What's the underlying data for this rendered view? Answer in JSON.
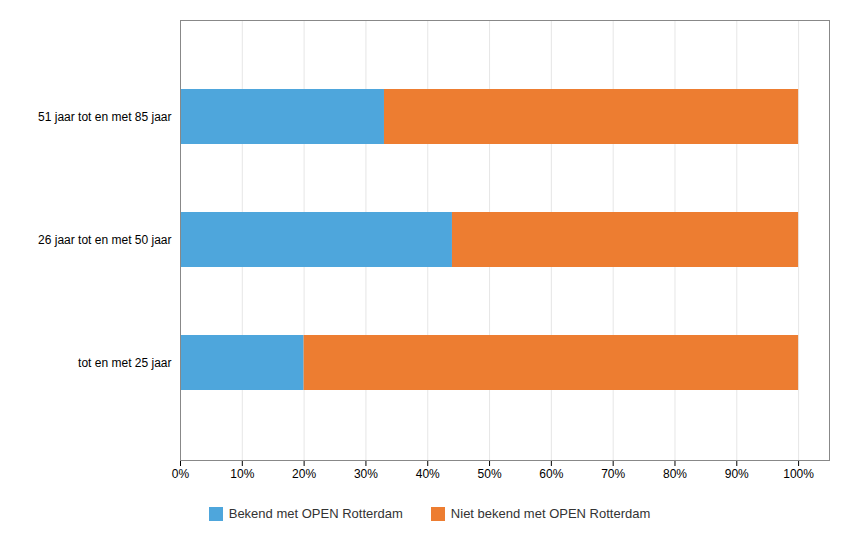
{
  "chart_data": {
    "type": "bar",
    "orientation": "horizontal",
    "stacked": true,
    "categories": [
      "tot en met 25 jaar",
      "26 jaar tot en met 50 jaar",
      "51 jaar tot en met 85 jaar"
    ],
    "series": [
      {
        "name": "Bekend met OPEN Rotterdam",
        "color": "#4EA6DC",
        "values": [
          20,
          44,
          33
        ]
      },
      {
        "name": "Niet bekend met OPEN Rotterdam",
        "color": "#ED7D31",
        "values": [
          80,
          56,
          67
        ]
      }
    ],
    "xlim": [
      0,
      105
    ],
    "xticks": [
      {
        "value": 0,
        "label": "0%"
      },
      {
        "value": 10,
        "label": "10%"
      },
      {
        "value": 20,
        "label": "20%"
      },
      {
        "value": 30,
        "label": "30%"
      },
      {
        "value": 40,
        "label": "40%"
      },
      {
        "value": 50,
        "label": "50%"
      },
      {
        "value": 60,
        "label": "60%"
      },
      {
        "value": 70,
        "label": "70%"
      },
      {
        "value": 80,
        "label": "80%"
      },
      {
        "value": 90,
        "label": "90%"
      },
      {
        "value": 100,
        "label": "100%"
      }
    ],
    "grid": true,
    "legend": "bottom"
  }
}
